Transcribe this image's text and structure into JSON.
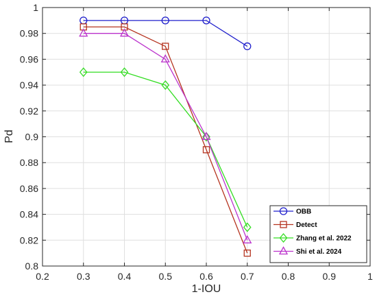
{
  "chart_data": {
    "type": "line",
    "xlabel": "1-IOU",
    "ylabel": "Pd",
    "xlim": [
      0.2,
      1.0
    ],
    "ylim": [
      0.8,
      1.0
    ],
    "xticks": [
      "0.2",
      "0.3",
      "0.4",
      "0.5",
      "0.6",
      "0.7",
      "0.8",
      "0.9",
      "1"
    ],
    "yticks": [
      "0.8",
      "0.82",
      "0.84",
      "0.86",
      "0.88",
      "0.9",
      "0.92",
      "0.94",
      "0.96",
      "0.98",
      "1"
    ],
    "grid": true,
    "legend_position": "bottom-right",
    "x": [
      0.3,
      0.4,
      0.5,
      0.6,
      0.7
    ],
    "series": [
      {
        "name": "OBB",
        "color": "#1f1fcc",
        "marker": "circle",
        "values": [
          0.99,
          0.99,
          0.99,
          0.99,
          0.97
        ]
      },
      {
        "name": "Detect",
        "color": "#b5331f",
        "marker": "square",
        "values": [
          0.985,
          0.985,
          0.97,
          0.89,
          0.81
        ]
      },
      {
        "name": "Zhang et al. 2022",
        "color": "#33dd22",
        "marker": "diamond",
        "values": [
          0.95,
          0.95,
          0.94,
          0.9,
          0.83
        ]
      },
      {
        "name": "Shi et al. 2024",
        "color": "#bb33cc",
        "marker": "triangle",
        "values": [
          0.98,
          0.98,
          0.96,
          0.9,
          0.82
        ]
      }
    ]
  }
}
